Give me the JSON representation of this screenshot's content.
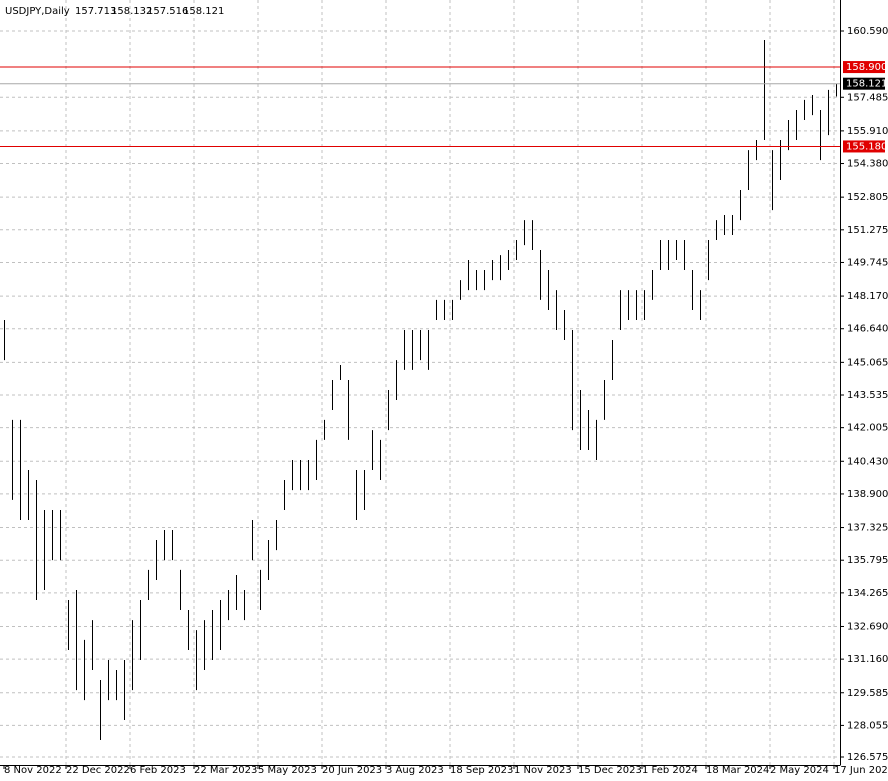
{
  "chart_data": {
    "type": "range-bar",
    "title": "USDJPY,Daily",
    "quote": [
      157.713,
      158.132,
      157.516,
      158.121
    ],
    "color": "#000000",
    "x": [
      0,
      4,
      8,
      12,
      16,
      20,
      24,
      28,
      32,
      36,
      40,
      44,
      48,
      52,
      56,
      60,
      64,
      68,
      72,
      76,
      80,
      84,
      88,
      92,
      96,
      100,
      104,
      108,
      112,
      116,
      120,
      124,
      128,
      132,
      136,
      140,
      144,
      148,
      152,
      156,
      160,
      164,
      168,
      172,
      176,
      180,
      184,
      188,
      192,
      196,
      200,
      204,
      208,
      212,
      216,
      220,
      224,
      228,
      232,
      236,
      240,
      244,
      248,
      252,
      256,
      260,
      264,
      268,
      272,
      276,
      280,
      284,
      288,
      292,
      296,
      300,
      304,
      308,
      312,
      316,
      320,
      324,
      328,
      332,
      336,
      340,
      344,
      348,
      352,
      356,
      360,
      364,
      368,
      372,
      376,
      380,
      384,
      388,
      392,
      396,
      400,
      404,
      408,
      412,
      416
    ],
    "series": [
      {
        "name": "high",
        "values": [
          147.05,
          142.37,
          142.37,
          140.02,
          139.55,
          138.15,
          138.15,
          138.15,
          133.93,
          134.4,
          132.06,
          132.99,
          130.18,
          131.12,
          130.65,
          131.12,
          132.99,
          133.93,
          135.34,
          136.74,
          137.21,
          137.21,
          135.34,
          133.46,
          132.52,
          132.99,
          133.46,
          133.93,
          134.4,
          135.1,
          134.4,
          137.68,
          135.34,
          136.74,
          137.68,
          139.55,
          140.49,
          140.49,
          140.49,
          141.43,
          142.37,
          144.24,
          144.94,
          144.24,
          140.02,
          140.02,
          141.89,
          141.43,
          143.77,
          145.17,
          146.58,
          146.58,
          146.58,
          146.58,
          147.99,
          147.99,
          147.99,
          148.92,
          149.86,
          149.39,
          149.39,
          149.86,
          150.09,
          150.33,
          150.8,
          151.73,
          151.73,
          150.33,
          149.39,
          148.45,
          147.52,
          146.58,
          143.77,
          142.83,
          142.37,
          144.24,
          146.11,
          148.45,
          148.45,
          148.45,
          148.45,
          149.39,
          150.8,
          150.8,
          150.8,
          150.8,
          149.39,
          148.45,
          150.8,
          151.73,
          151.97,
          151.97,
          153.14,
          155.01,
          155.48,
          160.17,
          155.01,
          155.48,
          156.42,
          156.89,
          157.36,
          157.59,
          156.89,
          157.83,
          158.13
        ]
      },
      {
        "name": "low",
        "values": [
          145.17,
          138.62,
          137.68,
          137.68,
          133.93,
          134.4,
          135.8,
          135.8,
          131.59,
          129.71,
          129.24,
          130.65,
          127.37,
          129.24,
          129.24,
          128.31,
          129.71,
          131.12,
          133.93,
          134.87,
          135.8,
          135.8,
          133.46,
          131.59,
          129.71,
          130.65,
          131.12,
          131.59,
          132.99,
          133.46,
          132.99,
          135.8,
          133.46,
          134.87,
          136.27,
          138.15,
          139.08,
          139.08,
          139.08,
          139.55,
          141.43,
          142.83,
          144.24,
          141.43,
          137.68,
          138.15,
          140.02,
          139.55,
          141.89,
          143.3,
          144.71,
          144.71,
          145.17,
          144.71,
          147.05,
          147.05,
          147.05,
          147.99,
          148.45,
          148.45,
          148.45,
          148.92,
          148.92,
          149.39,
          149.86,
          150.56,
          150.33,
          147.99,
          147.52,
          146.58,
          146.11,
          141.89,
          140.96,
          140.96,
          140.49,
          142.37,
          144.24,
          146.58,
          147.05,
          147.05,
          147.05,
          147.99,
          149.39,
          149.39,
          149.86,
          149.39,
          147.52,
          147.05,
          148.92,
          150.8,
          151.03,
          151.03,
          151.73,
          153.14,
          154.54,
          155.48,
          152.2,
          153.61,
          155.01,
          155.48,
          156.42,
          156.65,
          154.54,
          155.71,
          157.52
        ]
      }
    ],
    "xlim": [
      -2,
      418
    ],
    "ylim": [
      126.2,
      162.042
    ],
    "xticks": [
      {
        "value": 0,
        "label": "8 Nov 2022"
      },
      {
        "value": 31,
        "label": "22 Dec 2022"
      },
      {
        "value": 63,
        "label": "6 Feb 2023"
      },
      {
        "value": 95,
        "label": "22 Mar 2023"
      },
      {
        "value": 127,
        "label": "5 May 2023"
      },
      {
        "value": 159,
        "label": "20 Jun 2023"
      },
      {
        "value": 191,
        "label": "3 Aug 2023"
      },
      {
        "value": 223,
        "label": "18 Sep 2023"
      },
      {
        "value": 255,
        "label": "1 Nov 2023"
      },
      {
        "value": 287,
        "label": "15 Dec 2023"
      },
      {
        "value": 319,
        "label": "1 Feb 2024"
      },
      {
        "value": 351,
        "label": "18 Mar 2024"
      },
      {
        "value": 383,
        "label": "2 May 2024"
      },
      {
        "value": 415,
        "label": "17 Jun 2024"
      }
    ],
    "yticks": [
      {
        "value": 160.59,
        "label": "160.590"
      },
      {
        "value": 157.485,
        "label": "157.485"
      },
      {
        "value": 155.91,
        "label": "155.910"
      },
      {
        "value": 154.38,
        "label": "154.380"
      },
      {
        "value": 152.805,
        "label": "152.805"
      },
      {
        "value": 151.275,
        "label": "151.275"
      },
      {
        "value": 149.745,
        "label": "149.745"
      },
      {
        "value": 148.17,
        "label": "148.170"
      },
      {
        "value": 146.64,
        "label": "146.640"
      },
      {
        "value": 145.065,
        "label": "145.065"
      },
      {
        "value": 143.535,
        "label": "143.535"
      },
      {
        "value": 142.005,
        "label": "142.005"
      },
      {
        "value": 140.43,
        "label": "140.430"
      },
      {
        "value": 138.9,
        "label": "138.900"
      },
      {
        "value": 137.325,
        "label": "137.325"
      },
      {
        "value": 135.795,
        "label": "135.795"
      },
      {
        "value": 134.265,
        "label": "134.265"
      },
      {
        "value": 132.69,
        "label": "132.690"
      },
      {
        "value": 131.16,
        "label": "131.160"
      },
      {
        "value": 129.585,
        "label": "129.585"
      },
      {
        "value": 128.055,
        "label": "128.055"
      },
      {
        "value": 126.575,
        "label": "126.575"
      }
    ],
    "grid": true,
    "hlines": [
      {
        "value": 158.9,
        "label": "158.900",
        "color": "#e00000"
      },
      {
        "value": 155.18,
        "label": "155.180",
        "color": "#e00000"
      }
    ],
    "last_price": {
      "value": 158.121,
      "label": "158.121",
      "color": "#000000",
      "line_color": "#a8a8a8"
    }
  }
}
